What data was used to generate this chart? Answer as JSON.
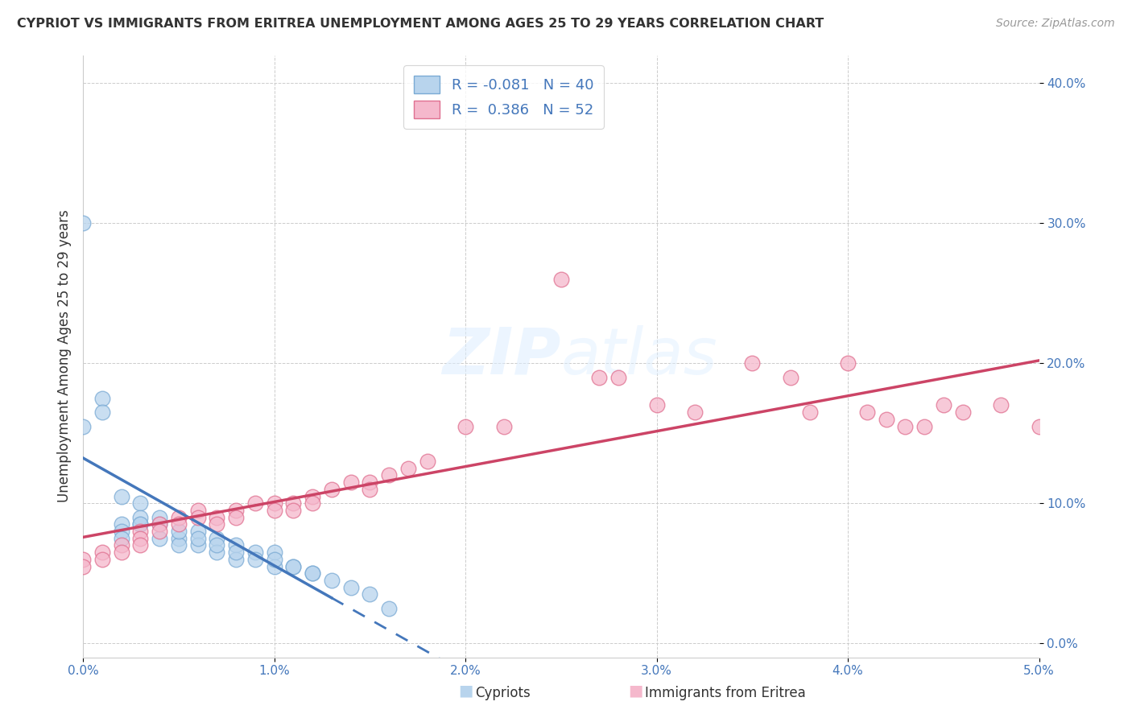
{
  "title": "CYPRIOT VS IMMIGRANTS FROM ERITREA UNEMPLOYMENT AMONG AGES 25 TO 29 YEARS CORRELATION CHART",
  "source": "Source: ZipAtlas.com",
  "ylabel": "Unemployment Among Ages 25 to 29 years",
  "xlim": [
    0.0,
    0.05
  ],
  "ylim": [
    -0.01,
    0.42
  ],
  "x_ticks": [
    0.0,
    0.01,
    0.02,
    0.03,
    0.04,
    0.05
  ],
  "x_tick_labels": [
    "0.0%",
    "1.0%",
    "2.0%",
    "3.0%",
    "4.0%",
    "5.0%"
  ],
  "y_ticks": [
    0.0,
    0.1,
    0.2,
    0.3,
    0.4
  ],
  "y_tick_labels": [
    "0.0%",
    "10.0%",
    "20.0%",
    "30.0%",
    "40.0%"
  ],
  "color_cypriot_fill": "#b8d4ed",
  "color_cypriot_edge": "#7aaad4",
  "color_eritrea_fill": "#f5b8cc",
  "color_eritrea_edge": "#e07090",
  "color_trend_cypriot": "#4477bb",
  "color_trend_eritrea": "#cc4466",
  "background_color": "#ffffff",
  "grid_color": "#cccccc",
  "cypriot_x": [
    0.002,
    0.002,
    0.002,
    0.003,
    0.003,
    0.004,
    0.004,
    0.005,
    0.005,
    0.006,
    0.006,
    0.007,
    0.007,
    0.008,
    0.008,
    0.009,
    0.01,
    0.01,
    0.011,
    0.012,
    0.0,
    0.0,
    0.001,
    0.001,
    0.002,
    0.003,
    0.003,
    0.004,
    0.005,
    0.006,
    0.007,
    0.008,
    0.009,
    0.01,
    0.011,
    0.012,
    0.013,
    0.014,
    0.015,
    0.016
  ],
  "cypriot_y": [
    0.085,
    0.08,
    0.075,
    0.1,
    0.085,
    0.085,
    0.075,
    0.075,
    0.07,
    0.08,
    0.07,
    0.075,
    0.065,
    0.07,
    0.06,
    0.065,
    0.065,
    0.055,
    0.055,
    0.05,
    0.3,
    0.155,
    0.175,
    0.165,
    0.105,
    0.09,
    0.085,
    0.09,
    0.08,
    0.075,
    0.07,
    0.065,
    0.06,
    0.06,
    0.055,
    0.05,
    0.045,
    0.04,
    0.035,
    0.025
  ],
  "eritrea_x": [
    0.0,
    0.0,
    0.001,
    0.001,
    0.002,
    0.002,
    0.003,
    0.003,
    0.003,
    0.004,
    0.004,
    0.005,
    0.005,
    0.006,
    0.006,
    0.007,
    0.007,
    0.008,
    0.008,
    0.009,
    0.01,
    0.01,
    0.011,
    0.011,
    0.012,
    0.012,
    0.013,
    0.014,
    0.015,
    0.015,
    0.016,
    0.017,
    0.018,
    0.02,
    0.022,
    0.025,
    0.027,
    0.028,
    0.03,
    0.032,
    0.035,
    0.037,
    0.038,
    0.04,
    0.041,
    0.042,
    0.043,
    0.044,
    0.045,
    0.046,
    0.048,
    0.05
  ],
  "eritrea_y": [
    0.06,
    0.055,
    0.065,
    0.06,
    0.07,
    0.065,
    0.08,
    0.075,
    0.07,
    0.085,
    0.08,
    0.09,
    0.085,
    0.095,
    0.09,
    0.09,
    0.085,
    0.095,
    0.09,
    0.1,
    0.1,
    0.095,
    0.1,
    0.095,
    0.105,
    0.1,
    0.11,
    0.115,
    0.115,
    0.11,
    0.12,
    0.125,
    0.13,
    0.155,
    0.155,
    0.26,
    0.19,
    0.19,
    0.17,
    0.165,
    0.2,
    0.19,
    0.165,
    0.2,
    0.165,
    0.16,
    0.155,
    0.155,
    0.17,
    0.165,
    0.17,
    0.155
  ]
}
